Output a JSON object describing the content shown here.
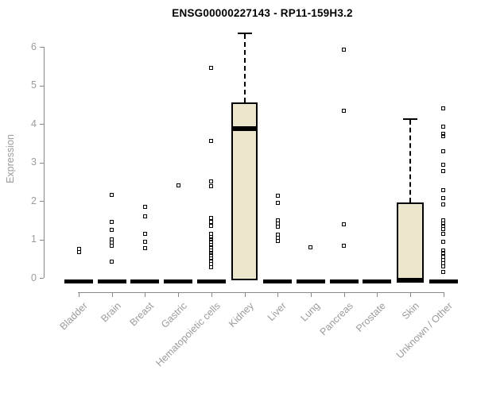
{
  "title": "ENSG00000227143 - RP11-159H3.2",
  "chart_data": {
    "type": "boxplot",
    "title": "ENSG00000227143 - RP11-159H3.2",
    "xlabel": "",
    "ylabel": "Expression",
    "ylim": [
      0,
      6.5
    ],
    "yticks": [
      0,
      1,
      2,
      3,
      4,
      5,
      6
    ],
    "grid": false,
    "legend": "none",
    "categories": [
      "Bladder",
      "Brain",
      "Breast",
      "Gastric",
      "Hematopoietic cells",
      "Kidney",
      "Liver",
      "Lung",
      "Pancreas",
      "Prostate",
      "Skin",
      "Unknown / Other"
    ],
    "colors": {
      "box_fill": "#ECE7CC",
      "box_border": "#000000",
      "point": "#000000",
      "axis": "#888888",
      "tick_label": "#9b9b9b",
      "title": "#000000"
    },
    "series": [
      {
        "name": "Bladder",
        "zero_bar": true,
        "box": null,
        "points": [
          0.76,
          0.68
        ]
      },
      {
        "name": "Brain",
        "zero_bar": true,
        "box": null,
        "points": [
          2.15,
          1.45,
          1.25,
          1.0,
          0.92,
          0.83,
          0.42
        ]
      },
      {
        "name": "Breast",
        "zero_bar": true,
        "box": null,
        "points": [
          1.85,
          1.6,
          1.15,
          0.93,
          0.78
        ]
      },
      {
        "name": "Gastric",
        "zero_bar": true,
        "box": null,
        "points": [
          2.4
        ]
      },
      {
        "name": "Hematopoietic cells",
        "zero_bar": true,
        "box": null,
        "points": [
          5.45,
          3.55,
          2.5,
          2.38,
          1.55,
          1.45,
          1.35,
          1.15,
          1.07,
          1.0,
          0.93,
          0.86,
          0.79,
          0.72,
          0.65,
          0.58,
          0.51,
          0.44,
          0.36,
          0.28
        ]
      },
      {
        "name": "Kidney",
        "zero_bar": false,
        "box": {
          "whisker_low": 0,
          "q1": 0,
          "median": 3.88,
          "q3": 4.56,
          "whisker_high": 6.35
        },
        "points": []
      },
      {
        "name": "Liver",
        "zero_bar": true,
        "box": null,
        "points": [
          2.13,
          1.95,
          1.5,
          1.42,
          1.32,
          1.13,
          1.04,
          0.95
        ]
      },
      {
        "name": "Lung",
        "zero_bar": true,
        "box": null,
        "points": [
          0.8
        ]
      },
      {
        "name": "Pancreas",
        "zero_bar": true,
        "box": null,
        "points": [
          5.92,
          4.33,
          1.4,
          0.83
        ]
      },
      {
        "name": "Prostate",
        "zero_bar": true,
        "box": null,
        "points": []
      },
      {
        "name": "Skin",
        "zero_bar": false,
        "box": {
          "whisker_low": 0,
          "q1": 0,
          "median": 0.02,
          "q3": 1.95,
          "whisker_high": 4.12
        },
        "points": []
      },
      {
        "name": "Unknown / Other",
        "zero_bar": true,
        "box": null,
        "points": [
          4.4,
          3.93,
          3.75,
          3.68,
          3.28,
          2.93,
          2.78,
          2.28,
          2.08,
          1.9,
          1.5,
          1.42,
          1.35,
          1.27,
          1.14,
          0.94,
          0.72,
          0.64,
          0.54,
          0.46,
          0.38,
          0.3,
          0.15
        ]
      }
    ]
  }
}
